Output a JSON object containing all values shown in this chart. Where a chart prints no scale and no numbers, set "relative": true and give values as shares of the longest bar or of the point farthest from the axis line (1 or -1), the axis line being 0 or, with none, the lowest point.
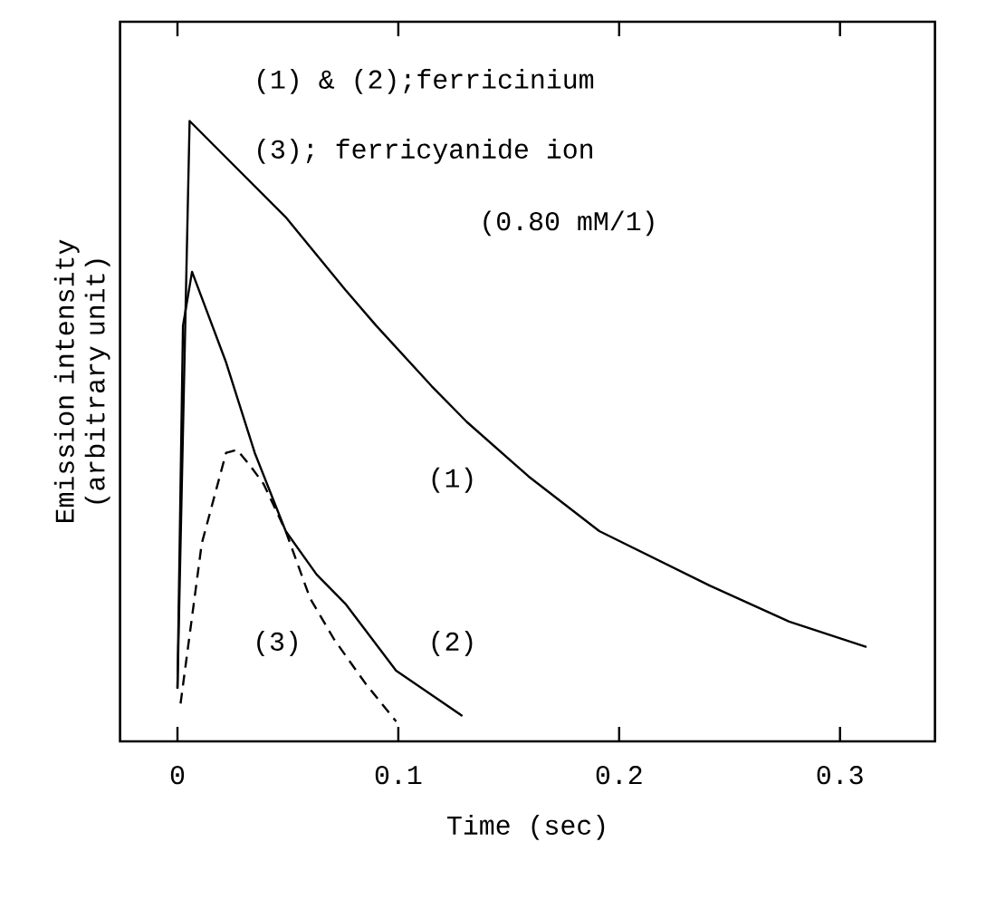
{
  "chart_data": {
    "type": "line",
    "relative": true,
    "xlabel": "Time (sec)",
    "ylabel": "Emission intensity (arbitrary unit)",
    "xlim": [
      -0.026,
      0.343
    ],
    "xticks": [
      0,
      0.1,
      0.2,
      0.3
    ],
    "marker": "none",
    "series": [
      {
        "color": "#000000",
        "line_style": "solid",
        "x": [
          0,
          0.0055,
          0.049,
          0.076,
          0.09,
          0.115,
          0.131,
          0.159,
          0.191,
          0.241,
          0.277,
          0.312
        ],
        "values": [
          0.085,
          1.0,
          0.845,
          0.728,
          0.67,
          0.573,
          0.515,
          0.427,
          0.339,
          0.251,
          0.193,
          0.152
        ]
      },
      {
        "color": "#000000",
        "line_style": "solid",
        "x": [
          0,
          0.0025,
          0.0066,
          0.022,
          0.035,
          0.049,
          0.063,
          0.076,
          0.099,
          0.129
        ],
        "values": [
          0.085,
          0.67,
          0.757,
          0.611,
          0.465,
          0.339,
          0.269,
          0.222,
          0.114,
          0.041
        ]
      },
      {
        "color": "#000000",
        "line_style": "dashed",
        "x": [
          0.0014,
          0.011,
          0.022,
          0.027,
          0.033,
          0.039,
          0.049,
          0.06,
          0.071,
          0.085,
          0.099
        ],
        "values": [
          0.061,
          0.319,
          0.465,
          0.47,
          0.444,
          0.415,
          0.339,
          0.231,
          0.164,
          0.094,
          0.032
        ]
      }
    ],
    "annotations": [
      "(1) & (2);ferricinium",
      "(3); ferricyanide ion",
      "(0.80 mM/1)",
      "(1)",
      "(2)",
      "(3)"
    ]
  }
}
